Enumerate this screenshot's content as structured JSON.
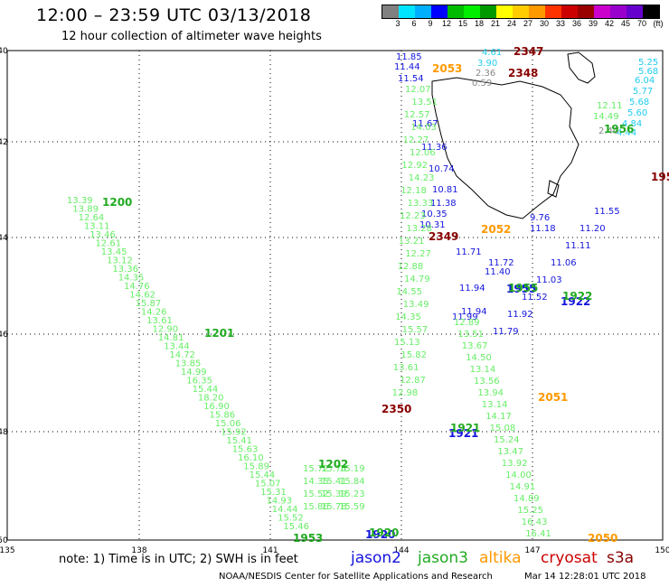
{
  "header": {
    "title": "12:00 – 23:59 UTC 03/13/2018",
    "subtitle": "12 hour collection of altimeter wave heights"
  },
  "colorbar": {
    "colors": [
      "#808080",
      "#00e5ff",
      "#00b0ff",
      "#0000ff",
      "#00bb00",
      "#00ee00",
      "#009900",
      "#ffff00",
      "#ffcc00",
      "#ff9900",
      "#ff3300",
      "#cc0000",
      "#990000",
      "#cc00cc",
      "#9900cc",
      "#6600cc",
      "#000000"
    ],
    "tick_labels": [
      "3",
      "6",
      "9",
      "12",
      "15",
      "18",
      "21",
      "24",
      "27",
      "30",
      "33",
      "36",
      "39",
      "42",
      "45",
      "70",
      "(ft)"
    ]
  },
  "footer": {
    "note": "note: 1) Time is in UTC; 2) SWH is in feet",
    "satellites": [
      {
        "name": "jason2",
        "color": "#1515dd"
      },
      {
        "name": "jason3",
        "color": "#22aa22"
      },
      {
        "name": "altika",
        "color": "#ff9900"
      },
      {
        "name": "cryosat",
        "color": "#cc0000"
      },
      {
        "name": "s3a",
        "color": "#880000"
      }
    ],
    "credit": "NOAA/NESDIS Center for Satellite Applications and Research",
    "date": "Mar 14 12:28:01 UTC 2018"
  },
  "map": {
    "lon_labels": [
      "135",
      "138",
      "141",
      "144",
      "147",
      "150"
    ],
    "lat_labels": [
      "-40",
      "-42",
      "-44",
      "-46",
      "-48",
      "-50"
    ],
    "colors": {
      "green": "#22aa22",
      "light_green": "#66ee66",
      "blue": "#1515dd",
      "cyan": "#22ccee",
      "gray": "#888888",
      "orange": "#ff9900",
      "dark_red": "#880000"
    },
    "tracks": [
      {
        "sat": "jason3",
        "time": "1200",
        "values": [
          13.39,
          13.89,
          12.64,
          13.11,
          13.46,
          12.61,
          13.45,
          13.12,
          13.36,
          14.35,
          14.76,
          14.62,
          15.87,
          14.26,
          13.61,
          12.9,
          14.81,
          13.44,
          14.72,
          13.85,
          14.99,
          16.35,
          15.44,
          18.2,
          16.9,
          15.86,
          15.06,
          15.92,
          15.41,
          15.63,
          16.1,
          15.89,
          15.44,
          15.07,
          15.31,
          14.93,
          14.44,
          15.52,
          15.46
        ]
      },
      {
        "sat": "jason3",
        "time": "1201",
        "values": []
      },
      {
        "sat": "jason3",
        "time": "1202",
        "values": [
          15.72,
          15.74,
          15.19,
          14.35,
          15.41,
          15.84,
          15.52,
          15.39,
          15.23,
          15.86,
          15.78,
          15.59
        ]
      },
      {
        "sat": "jason3",
        "time": "1953",
        "values": []
      },
      {
        "sat": "jason2",
        "time": "1920",
        "values": []
      },
      {
        "sat": "jason3",
        "time": "1920",
        "values": []
      },
      {
        "sat": "jason2",
        "time": "1921",
        "values": []
      },
      {
        "sat": "jason3",
        "time": "1921",
        "values": []
      },
      {
        "sat": "jason2",
        "time": "1922",
        "values": [
          11.79,
          11.92,
          11.52,
          11.03,
          11.06,
          11.11,
          11.2,
          11.55
        ]
      },
      {
        "sat": "jason3",
        "time": "1922",
        "values": []
      },
      {
        "sat": "jason2",
        "time": "1955",
        "values": [
          11.85,
          11.44,
          11.54,
          11.67,
          11.36,
          10.74,
          10.81,
          11.38,
          10.35,
          10.31,
          11.71,
          11.72,
          11.4,
          11.94,
          11.99,
          11.94,
          9.76,
          11.18
        ]
      },
      {
        "sat": "jason3",
        "time": "1955",
        "values": [
          12.07,
          13.51,
          12.57,
          14.03,
          12.27,
          12.06,
          12.92,
          14.23,
          12.18,
          13.33,
          12.23,
          13.28,
          13.21,
          12.27,
          12.88,
          14.79,
          14.55,
          13.49,
          14.35,
          15.57,
          15.13,
          15.82,
          13.61,
          12.87,
          12.98,
          12.89,
          13.51,
          13.67,
          14.5,
          13.14,
          13.56,
          13.94,
          13.14,
          14.17,
          15.08,
          15.24,
          13.47,
          13.92,
          14.0,
          14.91,
          14.89,
          15.25,
          16.43,
          16.41
        ]
      },
      {
        "sat": "jason3",
        "time": "1956",
        "values": [
          12.11,
          14.49
        ]
      },
      {
        "sat": "s3a",
        "time": "1956",
        "values": [
          4.61,
          3.9,
          2.36,
          0.59,
          5.25,
          5.68,
          6.04,
          5.77,
          5.68,
          5.6,
          4.84,
          4.44,
          2.4
        ]
      },
      {
        "sat": "altika",
        "time": "2050",
        "values": []
      },
      {
        "sat": "altika",
        "time": "2051",
        "values": []
      },
      {
        "sat": "altika",
        "time": "2052",
        "values": []
      },
      {
        "sat": "altika",
        "time": "2053",
        "values": []
      },
      {
        "sat": "s3a",
        "time": "2347",
        "values": []
      },
      {
        "sat": "s3a",
        "time": "2348",
        "values": []
      },
      {
        "sat": "s3a",
        "time": "2349",
        "values": []
      },
      {
        "sat": "s3a",
        "time": "2350",
        "values": []
      }
    ]
  }
}
